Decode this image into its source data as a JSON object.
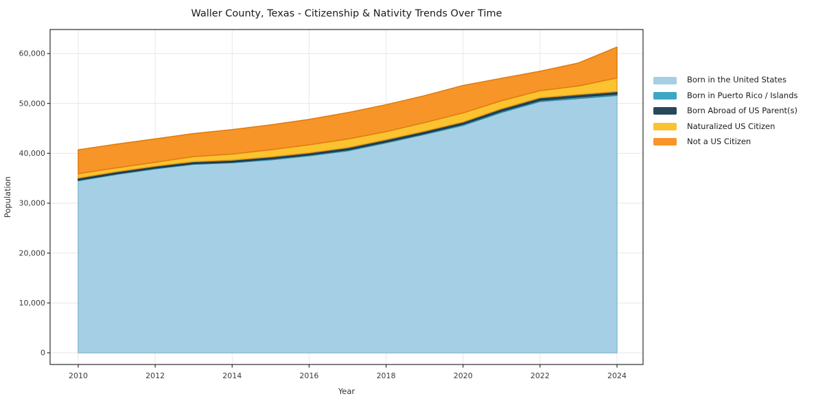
{
  "figure": {
    "title": "Waller County, Texas - Citizenship & Nativity Trends Over Time",
    "xlabel": "Year",
    "ylabel": "Population"
  },
  "chart_data": {
    "type": "area",
    "stacked": true,
    "title": "Waller County, Texas - Citizenship & Nativity Trends Over Time",
    "xlabel": "Year",
    "ylabel": "Population",
    "grid": true,
    "legend_position": "outside-right",
    "x": [
      2010,
      2011,
      2012,
      2013,
      2014,
      2015,
      2016,
      2017,
      2018,
      2019,
      2020,
      2021,
      2022,
      2023,
      2024
    ],
    "xtick_labels": [
      "2010",
      "2012",
      "2014",
      "2016",
      "2018",
      "2020",
      "2022",
      "2024"
    ],
    "xticks": [
      2010,
      2012,
      2014,
      2016,
      2018,
      2020,
      2022,
      2024
    ],
    "yticks": [
      0,
      10000,
      20000,
      30000,
      40000,
      50000,
      60000
    ],
    "ytick_labels": [
      "0",
      "10,000",
      "20,000",
      "30,000",
      "40,000",
      "50,000",
      "60,000"
    ],
    "xlim": [
      2009.3,
      2024.68
    ],
    "ylim": [
      0,
      64800
    ],
    "series": [
      {
        "name": "Born in the United States",
        "color": "#a5cfe4",
        "edge_color": "#8abcd6",
        "values": [
          34500,
          35800,
          36900,
          37800,
          38100,
          38700,
          39500,
          40500,
          42100,
          43800,
          45600,
          48200,
          50400,
          51000,
          51600
        ]
      },
      {
        "name": "Born in Puerto Rico / Islands",
        "color": "#3ea7c4",
        "edge_color": "#2d89a3",
        "values": [
          150,
          150,
          150,
          150,
          150,
          200,
          200,
          200,
          200,
          200,
          250,
          250,
          250,
          300,
          300
        ]
      },
      {
        "name": "Born Abroad of US Parent(s)",
        "color": "#28485c",
        "edge_color": "#1c3445",
        "values": [
          400,
          400,
          400,
          400,
          400,
          400,
          400,
          450,
          450,
          450,
          450,
          500,
          500,
          500,
          500
        ]
      },
      {
        "name": "Naturalized US Citizen",
        "color": "#fcc330",
        "edge_color": "#eca019",
        "values": [
          850,
          750,
          750,
          1000,
          1200,
          1400,
          1600,
          1700,
          1600,
          1700,
          1800,
          1600,
          1400,
          1700,
          2700
        ]
      },
      {
        "name": "Not a US Citizen",
        "color": "#f79528",
        "edge_color": "#e07d12",
        "values": [
          4800,
          4750,
          4700,
          4600,
          4900,
          5000,
          5100,
          5300,
          5400,
          5400,
          5500,
          4500,
          3900,
          4600,
          6200
        ]
      }
    ],
    "totals": [
      40700,
      41850,
      42900,
      43950,
      44750,
      45700,
      46800,
      48150,
      49750,
      51550,
      53600,
      55050,
      56450,
      58100,
      61300
    ],
    "grid_color": "#e6e6e6",
    "spine_color": "#2b2b2b"
  }
}
